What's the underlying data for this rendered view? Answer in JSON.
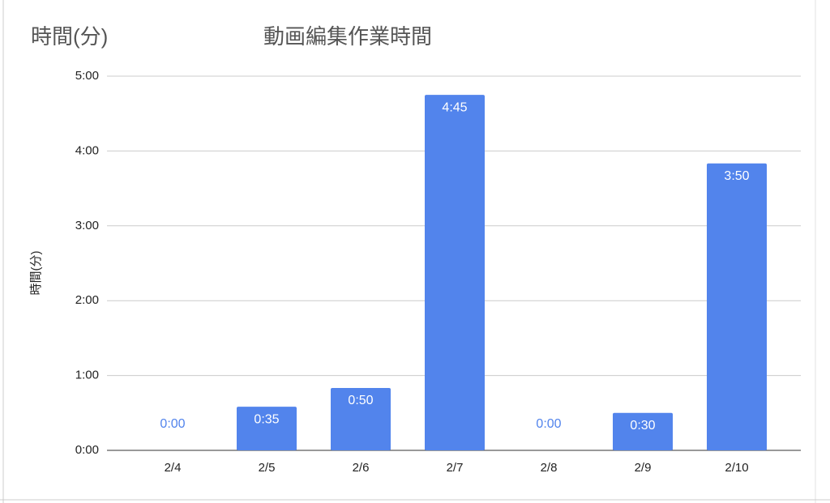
{
  "chart_data": {
    "type": "bar",
    "annotation": "時間(分)",
    "title": "動画編集作業時間",
    "y_label": "時間(分)",
    "categories": [
      "2/4",
      "2/5",
      "2/6",
      "2/7",
      "2/8",
      "2/9",
      "2/10"
    ],
    "values": [
      0,
      35,
      50,
      285,
      0,
      30,
      230
    ],
    "value_labels": [
      "0:00",
      "0:35",
      "0:50",
      "4:45",
      "0:00",
      "0:30",
      "3:50"
    ],
    "color": "#5284ec",
    "ylim": [
      0,
      300
    ],
    "yticks": [
      {
        "value": 0,
        "label": "0:00"
      },
      {
        "value": 60,
        "label": "1:00"
      },
      {
        "value": 120,
        "label": "2:00"
      },
      {
        "value": 180,
        "label": "3:00"
      },
      {
        "value": 240,
        "label": "4:00"
      },
      {
        "value": 300,
        "label": "5:00"
      }
    ],
    "grid": true
  }
}
